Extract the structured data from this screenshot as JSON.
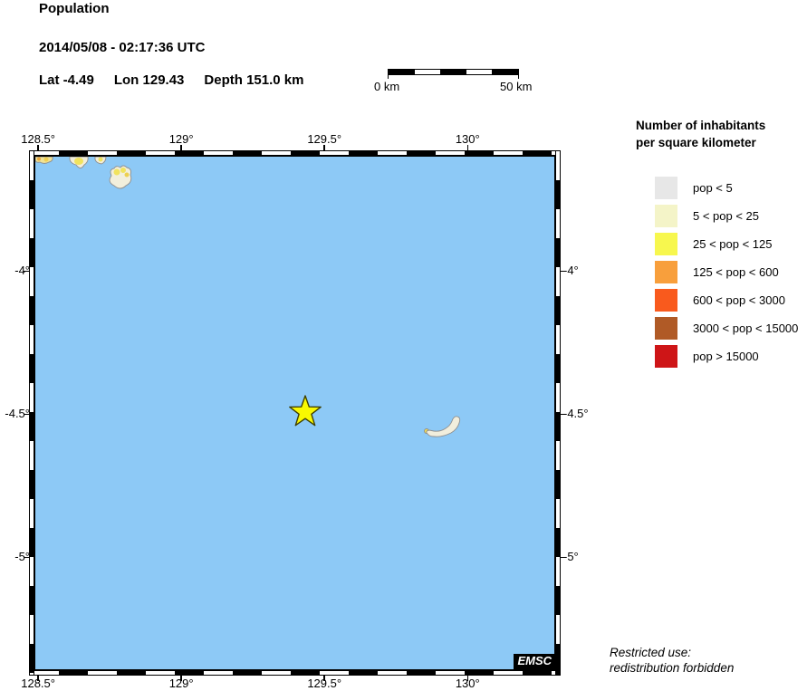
{
  "header": {
    "title": "Population",
    "datetime": "2014/05/08 - 02:17:36 UTC",
    "lat": "Lat -4.49",
    "lon": "Lon 129.43",
    "depth": "Depth 151.0 km"
  },
  "scale_bar": {
    "start_label": "0 km",
    "end_label": "50 km"
  },
  "map": {
    "sea_color": "#8dc9f6",
    "star_color": "#f9f901",
    "star_outline_color": "#3f3f00",
    "emsc_badge": "EMSC",
    "epicenter": {
      "lon": 129.43,
      "lat": -4.49
    },
    "lon_ticks": [
      {
        "label": "128.5°",
        "value": 128.5
      },
      {
        "label": "129°",
        "value": 129.0
      },
      {
        "label": "129.5°",
        "value": 129.5
      },
      {
        "label": "130°",
        "value": 130.0
      }
    ],
    "lat_ticks": [
      {
        "label": "-4°",
        "value": -4.0
      },
      {
        "label": "-4.5°",
        "value": -4.5
      },
      {
        "label": "-5°",
        "value": -5.0
      }
    ]
  },
  "legend": {
    "title_line1": "Number of inhabitants",
    "title_line2": "per square kilometer",
    "items": [
      {
        "label": "pop < 5",
        "color": "#e7e7e7"
      },
      {
        "label": "5 < pop < 25",
        "color": "#f4f4c8"
      },
      {
        "label": "25 < pop < 125",
        "color": "#f7f74e"
      },
      {
        "label": "125 < pop < 600",
        "color": "#f89f3c"
      },
      {
        "label": "600 < pop < 3000",
        "color": "#f95a1d"
      },
      {
        "label": "3000 < pop < 15000",
        "color": "#b05a26"
      },
      {
        "label": "pop > 15000",
        "color": "#ce1517"
      }
    ]
  },
  "footer": {
    "line1": "Restricted use:",
    "line2": "redistribution forbidden"
  }
}
